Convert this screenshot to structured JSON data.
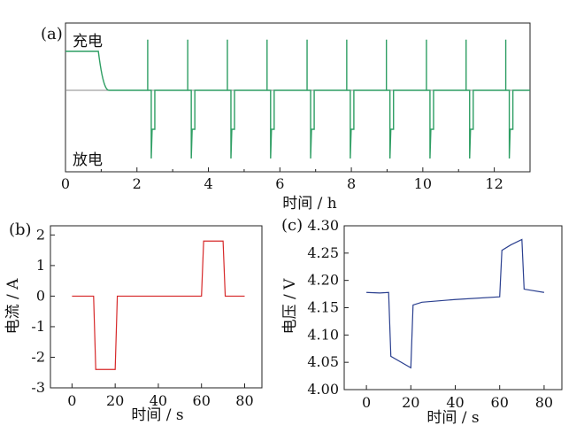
{
  "chart_data": [
    {
      "panel_label": "(a)",
      "type": "line",
      "xlabel": "时间 / h",
      "xlim": [
        0,
        13
      ],
      "xticks": [
        0,
        2,
        4,
        6,
        8,
        10,
        12
      ],
      "annotations": {
        "top": "充电",
        "bottom": "放电"
      },
      "baseline": 0,
      "ylim": [
        -1.72,
        1.72
      ],
      "series": [
        {
          "color": "#2e9e63",
          "charge_level": 1.0,
          "charge_end_h": 0.92,
          "decay_end_h": 1.22,
          "rest_end_h": 13.0,
          "pulse_times_h": [
            2.4,
            3.52,
            4.63,
            5.74,
            6.86,
            7.97,
            9.08,
            10.2,
            11.31,
            12.42
          ],
          "pulse_discharge_level": -1.0,
          "pulse_charge_level": 1.3,
          "pulse_discharge_level_peak": -1.75,
          "pulse_width_h": 0.1
        }
      ]
    },
    {
      "panel_label": "(b)",
      "type": "line",
      "xlabel": "时间 / s",
      "ylabel": "电流 / A",
      "xlim": [
        -10,
        88
      ],
      "ylim": [
        -3,
        2.3
      ],
      "xticks": [
        0,
        20,
        40,
        60,
        80
      ],
      "yticks": [
        -3,
        -2,
        -1,
        0,
        1,
        2
      ],
      "series": [
        {
          "color": "#d62728",
          "x": [
            0,
            10,
            11,
            20,
            21,
            60,
            61,
            70,
            71,
            80
          ],
          "y": [
            0,
            0,
            -2.4,
            -2.4,
            0,
            0,
            1.8,
            1.8,
            0,
            0
          ]
        }
      ]
    },
    {
      "panel_label": "(c)",
      "type": "line",
      "xlabel": "时间 / s",
      "ylabel": "电压 / V",
      "xlim": [
        -10,
        88
      ],
      "ylim": [
        4.0,
        4.3
      ],
      "xticks": [
        0,
        20,
        40,
        60,
        80
      ],
      "yticks": [
        "4.00",
        "4.05",
        "4.10",
        "4.15",
        "4.20",
        "4.25",
        "4.30"
      ],
      "series": [
        {
          "color": "#2a3f8f",
          "x": [
            0,
            6,
            10,
            11,
            20,
            21,
            25,
            40,
            60,
            61,
            65,
            70,
            71,
            80
          ],
          "y": [
            4.178,
            4.177,
            4.178,
            4.061,
            4.04,
            4.155,
            4.16,
            4.165,
            4.17,
            4.255,
            4.265,
            4.275,
            4.184,
            4.178
          ]
        }
      ]
    }
  ]
}
